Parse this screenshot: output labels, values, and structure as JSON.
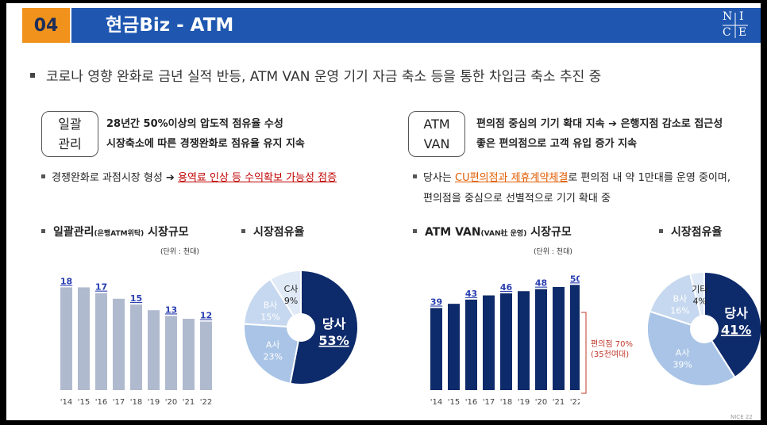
{
  "header": {
    "number": "04",
    "title": "현금Biz - ATM"
  },
  "main_bullet": "코로나 영향 완화로 금년 실적 반등, ATM VAN 운영 기기 자금 축소 등을 통한 차입금 축소 추진 중",
  "left": {
    "tag_line1": "일괄",
    "tag_line2": "관리",
    "desc1": "28년간 50%이상의 압도적 점유율 수성",
    "desc2": "시장축소에 따른 경쟁완화로 점유율 유지 지속",
    "sub_pre": "경쟁완화로 과점시장 형성 ➔ ",
    "sub_hl": "용역료 인상 등 수익확보 가능성 점증",
    "chart_title_a": "일괄관리",
    "chart_title_small": "(은행ATM위탁)",
    "chart_title_b": " 시장규모",
    "unit": "(단위 : 천대)",
    "share_title": "시장점유율"
  },
  "right": {
    "tag_line1": "ATM",
    "tag_line2": "VAN",
    "desc1": "편의점 중심의 기기 확대 지속 ➔ 은행지점 감소로 접근성",
    "desc2": "좋은 편의점으로 고객 유입 증가 지속",
    "sub_pre": "당사는 ",
    "sub_hl": "CU편의점과 제휴계약체결",
    "sub_post": "로 편의점 내 약 1만대를 운영 중이며,",
    "sub_line2": "편의점을 중심으로 선별적으로 기기 확대 중",
    "chart_title_a": "ATM VAN",
    "chart_title_small": "(VAN社 운영)",
    "chart_title_b": " 시장규모",
    "unit": "(단위 : 천대)",
    "share_title": "시장점유율",
    "bracket_line1": "편의점 70%",
    "bracket_line2": "(35천여대)"
  },
  "footer": "NICE 22",
  "colors": {
    "orange": "#f0921b",
    "header_blue": "#1f57b0",
    "navy": "#0d2a6b",
    "light_bar": "#b0bace",
    "label_blue": "#2a3fb0",
    "red": "#c0392b"
  },
  "chart_data": [
    {
      "type": "bar",
      "title": "일괄관리(은행ATM위탁) 시장규모",
      "unit": "(단위 : 천대)",
      "categories": [
        "'14",
        "'15",
        "'16",
        "'17",
        "'18",
        "'19",
        "'20",
        "'21",
        "'22"
      ],
      "values": [
        18,
        18,
        17,
        16,
        15,
        14,
        13,
        12.5,
        12
      ],
      "labeled_values": [
        "18",
        "",
        "17",
        "",
        "15",
        "",
        "13",
        "",
        "12"
      ],
      "ylim": [
        0,
        20
      ]
    },
    {
      "type": "pie",
      "title": "시장점유율",
      "slices": [
        {
          "label": "당사",
          "value": 53,
          "display": "53%"
        },
        {
          "label": "A사",
          "value": 23,
          "display": "23%"
        },
        {
          "label": "B사",
          "value": 15,
          "display": "15%"
        },
        {
          "label": "C사",
          "value": 9,
          "display": "9%"
        }
      ]
    },
    {
      "type": "bar",
      "title": "ATM VAN(VAN社 운영) 시장규모",
      "unit": "(단위 : 천대)",
      "categories": [
        "'14",
        "'15",
        "'16",
        "'17",
        "'18",
        "'19",
        "'20",
        "'21",
        "'22"
      ],
      "values": [
        39,
        41,
        43,
        45,
        46,
        47,
        48,
        49,
        50
      ],
      "labeled_values": [
        "39",
        "",
        "43",
        "",
        "46",
        "",
        "48",
        "",
        "50"
      ],
      "ylim": [
        0,
        55
      ]
    },
    {
      "type": "pie",
      "title": "시장점유율",
      "slices": [
        {
          "label": "당사",
          "value": 41,
          "display": "41%"
        },
        {
          "label": "A사",
          "value": 39,
          "display": "39%"
        },
        {
          "label": "B사",
          "value": 16,
          "display": "16%"
        },
        {
          "label": "기타",
          "value": 4,
          "display": "4%"
        }
      ]
    }
  ]
}
